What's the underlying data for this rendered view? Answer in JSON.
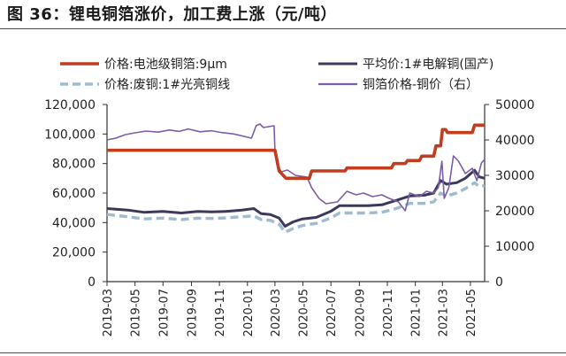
{
  "figure": {
    "title": "图 36：锂电铜箔涨价，加工费上涨（元/吨）"
  },
  "colors": {
    "battery_foil": "#c23c1e",
    "copper_avg": "#3c3a5c",
    "scrap_copper": "#9fbbd0",
    "spread": "#7b5ea7",
    "axis": "#333333"
  },
  "chart_data": {
    "type": "line",
    "legend_position": "top",
    "grid": false,
    "x_tick_labels": [
      "2019-03",
      "2019-05",
      "2019-07",
      "2019-09",
      "2019-11",
      "2020-01",
      "2020-03",
      "2020-05",
      "2020-07",
      "2020-09",
      "2020-11",
      "2021-01",
      "2021-03",
      "2021-05"
    ],
    "x_range": [
      "2019-03-01",
      "2021-06-01"
    ],
    "y_left": {
      "range": [
        0,
        120000
      ],
      "ticks": [
        "0",
        "20,000",
        "40,000",
        "60,000",
        "80,000",
        "100,000",
        "120,000"
      ]
    },
    "y_right": {
      "range": [
        0,
        50000
      ],
      "ticks": [
        "0",
        "10000",
        "20000",
        "30000",
        "40000",
        "50000"
      ]
    },
    "series": [
      {
        "name": "价格:电池级铜箔:9μm",
        "axis": "left",
        "style": "solid-thick",
        "color": "#c23c1e",
        "points": [
          [
            "2019-03-01",
            89000
          ],
          [
            "2020-02-25",
            89000
          ],
          [
            "2020-03-01",
            89000
          ],
          [
            "2020-03-10",
            75000
          ],
          [
            "2020-03-25",
            70000
          ],
          [
            "2020-05-15",
            70000
          ],
          [
            "2020-05-20",
            75000
          ],
          [
            "2020-08-01",
            75000
          ],
          [
            "2020-08-05",
            77000
          ],
          [
            "2020-11-10",
            77000
          ],
          [
            "2020-11-15",
            80000
          ],
          [
            "2020-12-10",
            80000
          ],
          [
            "2020-12-15",
            82000
          ],
          [
            "2021-01-10",
            82000
          ],
          [
            "2021-01-15",
            85000
          ],
          [
            "2021-02-10",
            85000
          ],
          [
            "2021-02-15",
            92000
          ],
          [
            "2021-02-25",
            92000
          ],
          [
            "2021-03-01",
            103000
          ],
          [
            "2021-03-08",
            103000
          ],
          [
            "2021-03-12",
            101000
          ],
          [
            "2021-05-05",
            101000
          ],
          [
            "2021-05-10",
            106000
          ],
          [
            "2021-06-01",
            106000
          ]
        ]
      },
      {
        "name": "平均价:1#电解铜(国产)",
        "axis": "left",
        "style": "solid",
        "color": "#3c3a5c",
        "points": [
          [
            "2019-03-01",
            49500
          ],
          [
            "2019-04-15",
            48500
          ],
          [
            "2019-05-20",
            47000
          ],
          [
            "2019-07-01",
            47500
          ],
          [
            "2019-08-10",
            46500
          ],
          [
            "2019-09-15",
            47500
          ],
          [
            "2019-10-15",
            47300
          ],
          [
            "2019-11-15",
            47600
          ],
          [
            "2019-12-20",
            48500
          ],
          [
            "2020-01-15",
            49500
          ],
          [
            "2020-01-31",
            46000
          ],
          [
            "2020-02-20",
            45500
          ],
          [
            "2020-03-10",
            43000
          ],
          [
            "2020-03-23",
            37500
          ],
          [
            "2020-04-10",
            40500
          ],
          [
            "2020-04-30",
            42500
          ],
          [
            "2020-05-30",
            43500
          ],
          [
            "2020-06-30",
            47500
          ],
          [
            "2020-07-20",
            51500
          ],
          [
            "2020-08-20",
            51500
          ],
          [
            "2020-09-20",
            51500
          ],
          [
            "2020-10-20",
            52000
          ],
          [
            "2020-11-20",
            55000
          ],
          [
            "2020-12-20",
            58000
          ],
          [
            "2021-01-20",
            58500
          ],
          [
            "2021-02-10",
            60000
          ],
          [
            "2021-02-25",
            68500
          ],
          [
            "2021-03-10",
            66000
          ],
          [
            "2021-04-01",
            67000
          ],
          [
            "2021-04-20",
            70000
          ],
          [
            "2021-05-10",
            75500
          ],
          [
            "2021-05-20",
            71000
          ],
          [
            "2021-06-01",
            70000
          ]
        ]
      },
      {
        "name": "价格:废铜:1#光亮铜线",
        "axis": "left",
        "style": "dashed",
        "color": "#9fbbd0",
        "points": [
          [
            "2019-03-01",
            45500
          ],
          [
            "2019-04-15",
            44000
          ],
          [
            "2019-05-20",
            42500
          ],
          [
            "2019-07-01",
            43000
          ],
          [
            "2019-08-10",
            42000
          ],
          [
            "2019-09-15",
            43000
          ],
          [
            "2019-10-15",
            42800
          ],
          [
            "2019-11-15",
            43200
          ],
          [
            "2019-12-20",
            44000
          ],
          [
            "2020-01-15",
            44500
          ],
          [
            "2020-01-31",
            42000
          ],
          [
            "2020-02-20",
            41500
          ],
          [
            "2020-03-10",
            39000
          ],
          [
            "2020-03-23",
            33500
          ],
          [
            "2020-04-10",
            36000
          ],
          [
            "2020-04-30",
            38000
          ],
          [
            "2020-05-30",
            39500
          ],
          [
            "2020-06-30",
            43000
          ],
          [
            "2020-07-20",
            46500
          ],
          [
            "2020-08-20",
            46500
          ],
          [
            "2020-09-20",
            46500
          ],
          [
            "2020-10-20",
            47000
          ],
          [
            "2020-11-20",
            49500
          ],
          [
            "2020-12-20",
            53000
          ],
          [
            "2021-01-20",
            53000
          ],
          [
            "2021-02-10",
            54000
          ],
          [
            "2021-02-25",
            60000
          ],
          [
            "2021-03-10",
            58000
          ],
          [
            "2021-04-01",
            60000
          ],
          [
            "2021-04-20",
            63000
          ],
          [
            "2021-05-10",
            67000
          ],
          [
            "2021-05-20",
            64500
          ],
          [
            "2021-06-01",
            65000
          ]
        ]
      },
      {
        "name": "铜箔价格-铜价（右）",
        "axis": "right",
        "style": "solid-thin",
        "color": "#7b5ea7",
        "points": [
          [
            "2019-03-01",
            40000
          ],
          [
            "2019-03-20",
            40500
          ],
          [
            "2019-04-10",
            41500
          ],
          [
            "2019-05-01",
            42000
          ],
          [
            "2019-05-25",
            42500
          ],
          [
            "2019-06-20",
            42200
          ],
          [
            "2019-07-15",
            42800
          ],
          [
            "2019-08-05",
            42400
          ],
          [
            "2019-08-25",
            43100
          ],
          [
            "2019-09-20",
            42300
          ],
          [
            "2019-10-15",
            42600
          ],
          [
            "2019-11-05",
            42100
          ],
          [
            "2019-12-01",
            41700
          ],
          [
            "2019-12-25",
            41000
          ],
          [
            "2020-01-10",
            40500
          ],
          [
            "2020-01-20",
            44000
          ],
          [
            "2020-01-28",
            44500
          ],
          [
            "2020-02-05",
            43500
          ],
          [
            "2020-02-28",
            44000
          ],
          [
            "2020-03-01",
            37000
          ],
          [
            "2020-03-05",
            33000
          ],
          [
            "2020-03-15",
            31000
          ],
          [
            "2020-03-28",
            31500
          ],
          [
            "2020-04-15",
            30000
          ],
          [
            "2020-05-10",
            29500
          ],
          [
            "2020-05-20",
            26500
          ],
          [
            "2020-06-05",
            23500
          ],
          [
            "2020-06-20",
            22000
          ],
          [
            "2020-07-15",
            22500
          ],
          [
            "2020-08-05",
            25500
          ],
          [
            "2020-08-25",
            24500
          ],
          [
            "2020-09-10",
            25000
          ],
          [
            "2020-09-30",
            24000
          ],
          [
            "2020-10-20",
            24500
          ],
          [
            "2020-11-05",
            23500
          ],
          [
            "2020-11-25",
            22500
          ],
          [
            "2020-12-10",
            20000
          ],
          [
            "2020-12-20",
            25000
          ],
          [
            "2021-01-10",
            24000
          ],
          [
            "2021-01-25",
            25500
          ],
          [
            "2021-02-10",
            25000
          ],
          [
            "2021-02-20",
            26500
          ],
          [
            "2021-02-28",
            34000
          ],
          [
            "2021-03-05",
            23500
          ],
          [
            "2021-03-15",
            26500
          ],
          [
            "2021-03-25",
            35500
          ],
          [
            "2021-04-05",
            34000
          ],
          [
            "2021-04-20",
            30500
          ],
          [
            "2021-05-05",
            32000
          ],
          [
            "2021-05-15",
            28500
          ],
          [
            "2021-05-25",
            33500
          ],
          [
            "2021-06-01",
            34500
          ]
        ]
      }
    ]
  }
}
